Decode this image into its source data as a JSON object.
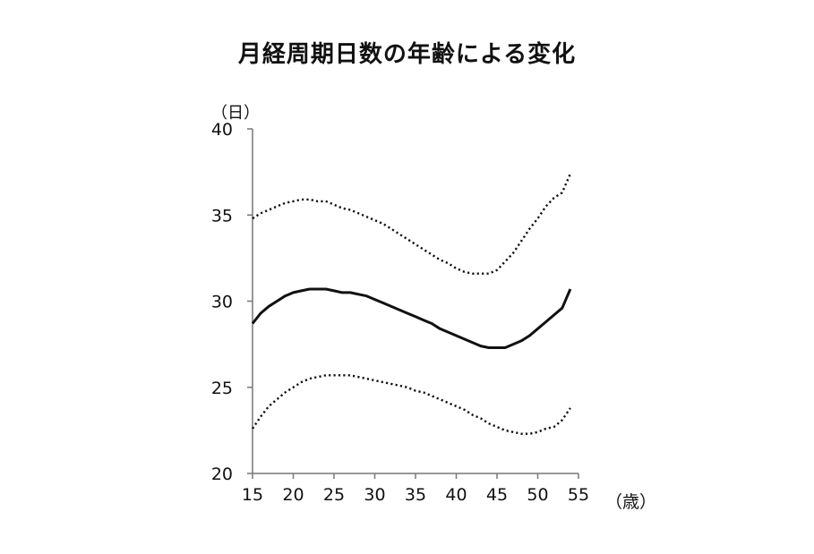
{
  "chart_data": {
    "type": "line",
    "title": "月経周期日数の年齢による変化",
    "ylabel": "（日）",
    "xlabel": "（歳）",
    "xlim": [
      15,
      55
    ],
    "ylim": [
      20,
      40
    ],
    "x_ticks": [
      15,
      20,
      25,
      30,
      35,
      40,
      45,
      50,
      55
    ],
    "y_ticks": [
      20,
      25,
      30,
      35,
      40
    ],
    "grid": false,
    "legend": "none",
    "series": [
      {
        "style": "dotted",
        "color": "#111111",
        "points": [
          [
            15,
            22.6
          ],
          [
            16,
            23.3
          ],
          [
            17,
            23.9
          ],
          [
            18,
            24.3
          ],
          [
            19,
            24.7
          ],
          [
            20,
            25.0
          ],
          [
            21,
            25.3
          ],
          [
            22,
            25.5
          ],
          [
            23,
            25.6
          ],
          [
            24,
            25.7
          ],
          [
            25,
            25.7
          ],
          [
            26,
            25.7
          ],
          [
            27,
            25.7
          ],
          [
            28,
            25.6
          ],
          [
            29,
            25.5
          ],
          [
            30,
            25.4
          ],
          [
            31,
            25.3
          ],
          [
            32,
            25.2
          ],
          [
            33,
            25.1
          ],
          [
            34,
            25.0
          ],
          [
            35,
            24.8
          ],
          [
            36,
            24.7
          ],
          [
            37,
            24.5
          ],
          [
            38,
            24.3
          ],
          [
            39,
            24.1
          ],
          [
            40,
            23.9
          ],
          [
            41,
            23.7
          ],
          [
            42,
            23.4
          ],
          [
            43,
            23.2
          ],
          [
            44,
            22.9
          ],
          [
            45,
            22.7
          ],
          [
            46,
            22.5
          ],
          [
            47,
            22.4
          ],
          [
            48,
            22.3
          ],
          [
            49,
            22.3
          ],
          [
            50,
            22.4
          ],
          [
            51,
            22.6
          ],
          [
            52,
            22.7
          ],
          [
            53,
            23.1
          ],
          [
            54,
            23.8
          ]
        ]
      },
      {
        "style": "solid",
        "color": "#111111",
        "points": [
          [
            15,
            28.7
          ],
          [
            16,
            29.3
          ],
          [
            17,
            29.7
          ],
          [
            18,
            30.0
          ],
          [
            19,
            30.3
          ],
          [
            20,
            30.5
          ],
          [
            21,
            30.6
          ],
          [
            22,
            30.7
          ],
          [
            23,
            30.7
          ],
          [
            24,
            30.7
          ],
          [
            25,
            30.6
          ],
          [
            26,
            30.5
          ],
          [
            27,
            30.5
          ],
          [
            28,
            30.4
          ],
          [
            29,
            30.3
          ],
          [
            30,
            30.1
          ],
          [
            31,
            29.9
          ],
          [
            32,
            29.7
          ],
          [
            33,
            29.5
          ],
          [
            34,
            29.3
          ],
          [
            35,
            29.1
          ],
          [
            36,
            28.9
          ],
          [
            37,
            28.7
          ],
          [
            38,
            28.4
          ],
          [
            39,
            28.2
          ],
          [
            40,
            28.0
          ],
          [
            41,
            27.8
          ],
          [
            42,
            27.6
          ],
          [
            43,
            27.4
          ],
          [
            44,
            27.3
          ],
          [
            45,
            27.3
          ],
          [
            46,
            27.3
          ],
          [
            47,
            27.5
          ],
          [
            48,
            27.7
          ],
          [
            49,
            28.0
          ],
          [
            50,
            28.4
          ],
          [
            51,
            28.8
          ],
          [
            52,
            29.2
          ],
          [
            53,
            29.6
          ],
          [
            54,
            30.7
          ]
        ]
      },
      {
        "style": "dotted",
        "color": "#111111",
        "points": [
          [
            15,
            34.8
          ],
          [
            16,
            35.1
          ],
          [
            17,
            35.3
          ],
          [
            18,
            35.5
          ],
          [
            19,
            35.7
          ],
          [
            20,
            35.8
          ],
          [
            21,
            35.9
          ],
          [
            22,
            35.9
          ],
          [
            23,
            35.8
          ],
          [
            24,
            35.8
          ],
          [
            25,
            35.6
          ],
          [
            26,
            35.4
          ],
          [
            27,
            35.3
          ],
          [
            28,
            35.1
          ],
          [
            29,
            34.9
          ],
          [
            30,
            34.7
          ],
          [
            31,
            34.5
          ],
          [
            32,
            34.2
          ],
          [
            33,
            33.9
          ],
          [
            34,
            33.6
          ],
          [
            35,
            33.3
          ],
          [
            36,
            33.0
          ],
          [
            37,
            32.7
          ],
          [
            38,
            32.4
          ],
          [
            39,
            32.2
          ],
          [
            40,
            31.9
          ],
          [
            41,
            31.7
          ],
          [
            42,
            31.6
          ],
          [
            43,
            31.6
          ],
          [
            44,
            31.6
          ],
          [
            45,
            31.8
          ],
          [
            46,
            32.3
          ],
          [
            47,
            32.8
          ],
          [
            48,
            33.5
          ],
          [
            49,
            34.2
          ],
          [
            50,
            34.8
          ],
          [
            51,
            35.5
          ],
          [
            52,
            36.0
          ],
          [
            53,
            36.3
          ],
          [
            54,
            37.4
          ]
        ]
      }
    ]
  }
}
